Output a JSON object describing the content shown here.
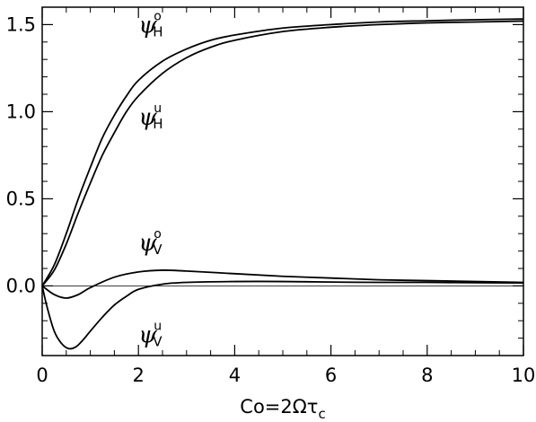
{
  "chart_data": {
    "type": "line",
    "title": "",
    "xlabel": "Co=2Ωτc",
    "xlabel_parts": {
      "main": "Co=2Ωτ",
      "sub": "c"
    },
    "ylabel": "",
    "xlim": [
      0,
      10
    ],
    "ylim": [
      -0.4,
      1.6
    ],
    "x_ticks": [
      "0",
      "2",
      "4",
      "6",
      "8",
      "10"
    ],
    "x_tick_values": [
      0,
      2,
      4,
      6,
      8,
      10
    ],
    "y_ticks": [
      "0.0",
      "0.5",
      "1.0",
      "1.5"
    ],
    "y_tick_values": [
      0.0,
      0.5,
      1.0,
      1.5
    ],
    "grid": false,
    "zero_line": true,
    "line_color": "#000000",
    "background": "#ffffff",
    "series": [
      {
        "name": "ψHo",
        "label": {
          "base": "ψ",
          "sup": "o",
          "sub": "H"
        },
        "x": [
          0,
          0.25,
          0.5,
          0.75,
          1,
          1.25,
          1.5,
          1.75,
          2,
          2.5,
          3,
          3.5,
          4,
          5,
          6,
          7,
          8,
          9,
          10
        ],
        "y": [
          0.0,
          0.12,
          0.3,
          0.5,
          0.68,
          0.85,
          0.98,
          1.09,
          1.18,
          1.29,
          1.36,
          1.41,
          1.44,
          1.48,
          1.5,
          1.515,
          1.522,
          1.528,
          1.532
        ]
      },
      {
        "name": "ψHu",
        "label": {
          "base": "ψ",
          "sup": "u",
          "sub": "H"
        },
        "x": [
          0,
          0.25,
          0.5,
          0.75,
          1,
          1.25,
          1.5,
          1.75,
          2,
          2.5,
          3,
          3.5,
          4,
          5,
          6,
          7,
          8,
          9,
          10
        ],
        "y": [
          0.0,
          0.09,
          0.24,
          0.42,
          0.59,
          0.75,
          0.88,
          1.0,
          1.09,
          1.22,
          1.31,
          1.37,
          1.41,
          1.46,
          1.485,
          1.5,
          1.51,
          1.515,
          1.52
        ]
      },
      {
        "name": "ψVo",
        "label": {
          "base": "ψ",
          "sup": "o",
          "sub": "V"
        },
        "x": [
          0,
          0.25,
          0.5,
          0.75,
          1,
          1.5,
          2,
          2.5,
          3,
          4,
          5,
          6,
          7,
          8,
          9,
          10
        ],
        "y": [
          0.0,
          -0.05,
          -0.07,
          -0.05,
          -0.01,
          0.05,
          0.08,
          0.09,
          0.085,
          0.07,
          0.055,
          0.045,
          0.035,
          0.03,
          0.025,
          0.02
        ]
      },
      {
        "name": "ψVu",
        "label": {
          "base": "ψ",
          "sup": "u",
          "sub": "V"
        },
        "x": [
          0,
          0.1,
          0.25,
          0.4,
          0.55,
          0.7,
          0.85,
          1,
          1.25,
          1.5,
          1.75,
          2,
          2.5,
          3,
          4,
          5,
          6,
          7,
          8,
          9,
          10
        ],
        "y": [
          0.0,
          -0.12,
          -0.26,
          -0.33,
          -0.36,
          -0.35,
          -0.31,
          -0.26,
          -0.18,
          -0.11,
          -0.06,
          -0.02,
          0.01,
          0.02,
          0.025,
          0.025,
          0.022,
          0.02,
          0.02,
          0.018,
          0.017
        ]
      }
    ],
    "annotations": [
      {
        "series": "ψHo",
        "x": 2.0,
        "y": 1.5
      },
      {
        "series": "ψHu",
        "x": 2.0,
        "y": 0.97
      },
      {
        "series": "ψVo",
        "x": 2.0,
        "y": 0.25
      },
      {
        "series": "ψVu",
        "x": 2.0,
        "y": -0.28
      }
    ]
  }
}
